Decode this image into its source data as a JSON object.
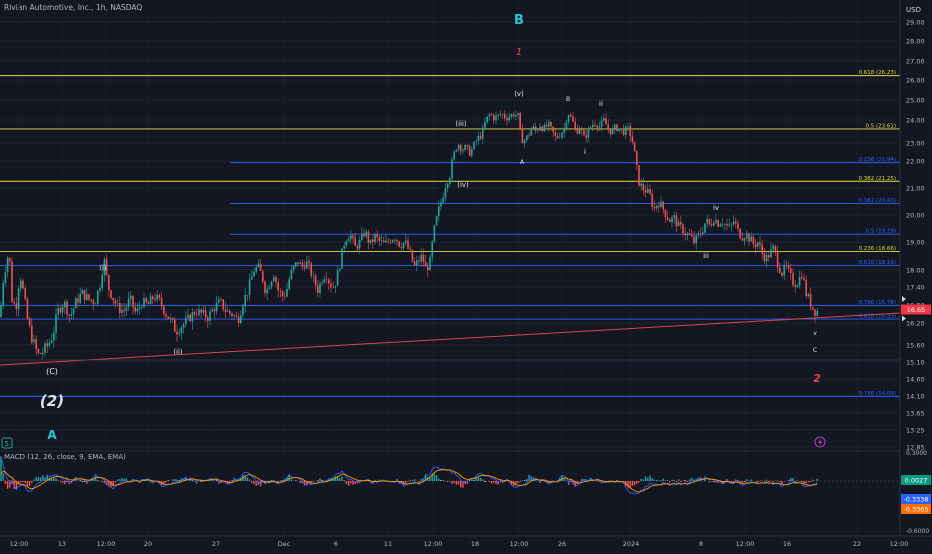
{
  "header": {
    "symbol_title": "Rivian Automotive, Inc., 1h, NASDAQ",
    "currency": "USD"
  },
  "indicator": {
    "title": "MACD (12, 26, close, 9, EMA, EMA)",
    "values": {
      "histogram": "0.0027",
      "macd": "-0.3338",
      "signal": "-0.3365"
    },
    "scale": {
      "positive": "0.3000",
      "negative": "-0.6000"
    }
  },
  "colors": {
    "background": "#131722",
    "bull": "#26a69a",
    "bear": "#ef5350",
    "fib_yellow": "#e6d94a",
    "fib_blue": "#2962ff",
    "trendline": "#d9454f",
    "teal_label": "#26c6da",
    "red_label": "#ef3b4f",
    "macd_line": "#2962ff",
    "signal_line": "#ff9800",
    "last_price_badge": "#f23645",
    "osc_positive_badge": "#089981",
    "osc_macd_badge": "#2962ff",
    "osc_signal_badge": "#ff6d00"
  },
  "icons": {
    "replay": "replay-icon",
    "lightning": "lightning-icon"
  },
  "chart_data": {
    "type": "candlestick",
    "title": "Rivian Automotive, Inc., 1h, NASDAQ",
    "ylim": [
      12.5,
      29.6
    ],
    "y_tick_labels": [
      "29.00",
      "28.00",
      "27.00",
      "26.00",
      "25.00",
      "24.00",
      "23.00",
      "22.00",
      "21.00",
      "20.00",
      "19.00",
      "18.00",
      "17.40",
      "16.80",
      "16.20",
      "15.60",
      "15.10",
      "14.60",
      "14.10",
      "13.65",
      "13.25",
      "12.85"
    ],
    "x_tick_labels": [
      "12:00",
      "13",
      "12:00",
      "20",
      "27",
      "Dec",
      "6",
      "11",
      "12:00",
      "18",
      "12:00",
      "26",
      "2024",
      "8",
      "12:00",
      "16",
      "22",
      "12:00"
    ],
    "last_price": "16.65",
    "price_marks": [
      "17.00",
      "16.35"
    ],
    "fib_levels": [
      {
        "label": "0.618 (26.23)",
        "value": 26.23,
        "color": "yellow"
      },
      {
        "label": "0.5 (23.61)",
        "value": 23.61,
        "color": "yellow"
      },
      {
        "label": "0.382 (21.25)",
        "value": 21.25,
        "color": "yellow"
      },
      {
        "label": "0.236 (18.66)",
        "value": 18.66,
        "color": "yellow"
      },
      {
        "label": "0.236 (21.94)",
        "value": 21.94,
        "color": "blue"
      },
      {
        "label": "0.382 (20.43)",
        "value": 20.43,
        "color": "blue"
      },
      {
        "label": "0.5 (19.29)",
        "value": 19.29,
        "color": "blue"
      },
      {
        "label": "0.618 (18.16)",
        "value": 18.16,
        "color": "blue"
      },
      {
        "label": "0.786 (16.78)",
        "value": 16.78,
        "color": "blue"
      },
      {
        "label": "0.618 (16.33)",
        "value": 16.33,
        "color": "blue"
      },
      {
        "label": "0.786 (14.09)",
        "value": 14.09,
        "color": "blue"
      }
    ],
    "wave_labels": [
      "B",
      "1",
      "(v)",
      "B",
      "ii",
      "(iii)",
      "A",
      "i",
      "(iv)",
      "iv",
      "iii",
      "(i)",
      "(ii)",
      "(C)",
      "(2)",
      "A",
      "v",
      "C",
      "2"
    ],
    "price_path": [
      [
        0,
        16.4
      ],
      [
        3,
        17.6
      ],
      [
        6,
        18.2
      ],
      [
        9,
        18.7
      ],
      [
        12,
        17.0
      ],
      [
        16,
        16.7
      ],
      [
        20,
        17.9
      ],
      [
        24,
        17.1
      ],
      [
        28,
        16.2
      ],
      [
        33,
        15.7
      ],
      [
        38,
        15.3
      ],
      [
        43,
        15.4
      ],
      [
        48,
        15.6
      ],
      [
        53,
        15.9
      ],
      [
        58,
        16.6
      ],
      [
        64,
        16.9
      ],
      [
        70,
        16.4
      ],
      [
        76,
        16.9
      ],
      [
        82,
        17.2
      ],
      [
        88,
        17.0
      ],
      [
        95,
        16.9
      ],
      [
        100,
        17.5
      ],
      [
        104,
        18.4
      ],
      [
        108,
        17.4
      ],
      [
        112,
        17.1
      ],
      [
        118,
        16.7
      ],
      [
        124,
        16.6
      ],
      [
        130,
        17.0
      ],
      [
        136,
        16.5
      ],
      [
        142,
        16.9
      ],
      [
        148,
        16.8
      ],
      [
        154,
        17.1
      ],
      [
        160,
        16.9
      ],
      [
        166,
        16.5
      ],
      [
        172,
        16.2
      ],
      [
        176,
        16.0
      ],
      [
        180,
        16.1
      ],
      [
        185,
        16.2
      ],
      [
        190,
        16.4
      ],
      [
        196,
        16.6
      ],
      [
        202,
        16.5
      ],
      [
        208,
        16.4
      ],
      [
        214,
        16.7
      ],
      [
        220,
        16.9
      ],
      [
        226,
        16.6
      ],
      [
        232,
        16.5
      ],
      [
        238,
        16.3
      ],
      [
        243,
        16.9
      ],
      [
        248,
        17.3
      ],
      [
        254,
        18.0
      ],
      [
        258,
        18.1
      ],
      [
        262,
        17.8
      ],
      [
        266,
        17.2
      ],
      [
        270,
        17.6
      ],
      [
        274,
        17.9
      ],
      [
        278,
        17.3
      ],
      [
        282,
        17.1
      ],
      [
        286,
        17.2
      ],
      [
        290,
        17.8
      ],
      [
        294,
        18.1
      ],
      [
        298,
        18.3
      ],
      [
        302,
        18.1
      ],
      [
        306,
        18.3
      ],
      [
        310,
        18.0
      ],
      [
        314,
        17.6
      ],
      [
        318,
        17.3
      ],
      [
        322,
        17.7
      ],
      [
        326,
        17.9
      ],
      [
        330,
        17.5
      ],
      [
        334,
        17.4
      ],
      [
        338,
        17.9
      ],
      [
        342,
        18.6
      ],
      [
        345,
        19.1
      ],
      [
        350,
        19.3
      ],
      [
        355,
        18.8
      ],
      [
        360,
        19.0
      ],
      [
        365,
        19.4
      ],
      [
        370,
        18.9
      ],
      [
        375,
        19.2
      ],
      [
        380,
        19.0
      ],
      [
        385,
        18.9
      ],
      [
        390,
        19.1
      ],
      [
        395,
        19.2
      ],
      [
        400,
        18.9
      ],
      [
        405,
        19.0
      ],
      [
        410,
        18.6
      ],
      [
        414,
        18.1
      ],
      [
        418,
        18.3
      ],
      [
        422,
        18.5
      ],
      [
        426,
        18.0
      ],
      [
        430,
        18.3
      ],
      [
        434,
        19.4
      ],
      [
        438,
        20.1
      ],
      [
        442,
        20.6
      ],
      [
        446,
        21.2
      ],
      [
        450,
        21.5
      ],
      [
        454,
        22.4
      ],
      [
        458,
        23.0
      ],
      [
        462,
        22.6
      ],
      [
        466,
        22.8
      ],
      [
        470,
        22.4
      ],
      [
        474,
        22.9
      ],
      [
        478,
        23.2
      ],
      [
        482,
        23.4
      ],
      [
        486,
        24.0
      ],
      [
        490,
        24.3
      ],
      [
        494,
        24.1
      ],
      [
        498,
        24.2
      ],
      [
        502,
        24.3
      ],
      [
        506,
        24.1
      ],
      [
        510,
        24.2
      ],
      [
        514,
        24.3
      ],
      [
        518,
        24.2
      ],
      [
        521,
        23.2
      ],
      [
        524,
        23.1
      ],
      [
        528,
        23.3
      ],
      [
        532,
        23.7
      ],
      [
        536,
        23.5
      ],
      [
        540,
        23.8
      ],
      [
        544,
        23.6
      ],
      [
        548,
        23.8
      ],
      [
        552,
        23.5
      ],
      [
        556,
        23.2
      ],
      [
        560,
        23.4
      ],
      [
        564,
        23.6
      ],
      [
        568,
        24.4
      ],
      [
        572,
        24.0
      ],
      [
        576,
        23.5
      ],
      [
        580,
        23.7
      ],
      [
        584,
        23.2
      ],
      [
        588,
        23.5
      ],
      [
        592,
        23.8
      ],
      [
        596,
        23.9
      ],
      [
        600,
        23.7
      ],
      [
        604,
        24.0
      ],
      [
        608,
        23.6
      ],
      [
        612,
        23.5
      ],
      [
        616,
        23.7
      ],
      [
        620,
        23.6
      ],
      [
        624,
        23.5
      ],
      [
        628,
        23.6
      ],
      [
        632,
        23.2
      ],
      [
        635,
        22.3
      ],
      [
        638,
        21.3
      ],
      [
        642,
        21.0
      ],
      [
        646,
        20.9
      ],
      [
        650,
        20.7
      ],
      [
        654,
        20.2
      ],
      [
        658,
        20.5
      ],
      [
        662,
        20.3
      ],
      [
        666,
        20.0
      ],
      [
        670,
        19.8
      ],
      [
        674,
        19.9
      ],
      [
        678,
        19.6
      ],
      [
        682,
        19.5
      ],
      [
        686,
        19.3
      ],
      [
        690,
        19.2
      ],
      [
        694,
        19.0
      ],
      [
        698,
        19.2
      ],
      [
        702,
        19.4
      ],
      [
        706,
        19.8
      ],
      [
        710,
        19.6
      ],
      [
        714,
        19.9
      ],
      [
        718,
        19.7
      ],
      [
        722,
        19.8
      ],
      [
        726,
        19.6
      ],
      [
        730,
        19.5
      ],
      [
        734,
        19.8
      ],
      [
        738,
        19.4
      ],
      [
        742,
        19.2
      ],
      [
        746,
        19.3
      ],
      [
        750,
        19.1
      ],
      [
        754,
        18.9
      ],
      [
        758,
        19.0
      ],
      [
        762,
        18.6
      ],
      [
        766,
        18.4
      ],
      [
        770,
        18.6
      ],
      [
        774,
        18.8
      ],
      [
        778,
        18.2
      ],
      [
        782,
        17.9
      ],
      [
        786,
        18.1
      ],
      [
        790,
        17.8
      ],
      [
        794,
        17.5
      ],
      [
        798,
        17.6
      ],
      [
        802,
        17.9
      ],
      [
        806,
        17.2
      ],
      [
        810,
        16.9
      ],
      [
        814,
        16.6
      ],
      [
        818,
        16.6
      ]
    ]
  }
}
